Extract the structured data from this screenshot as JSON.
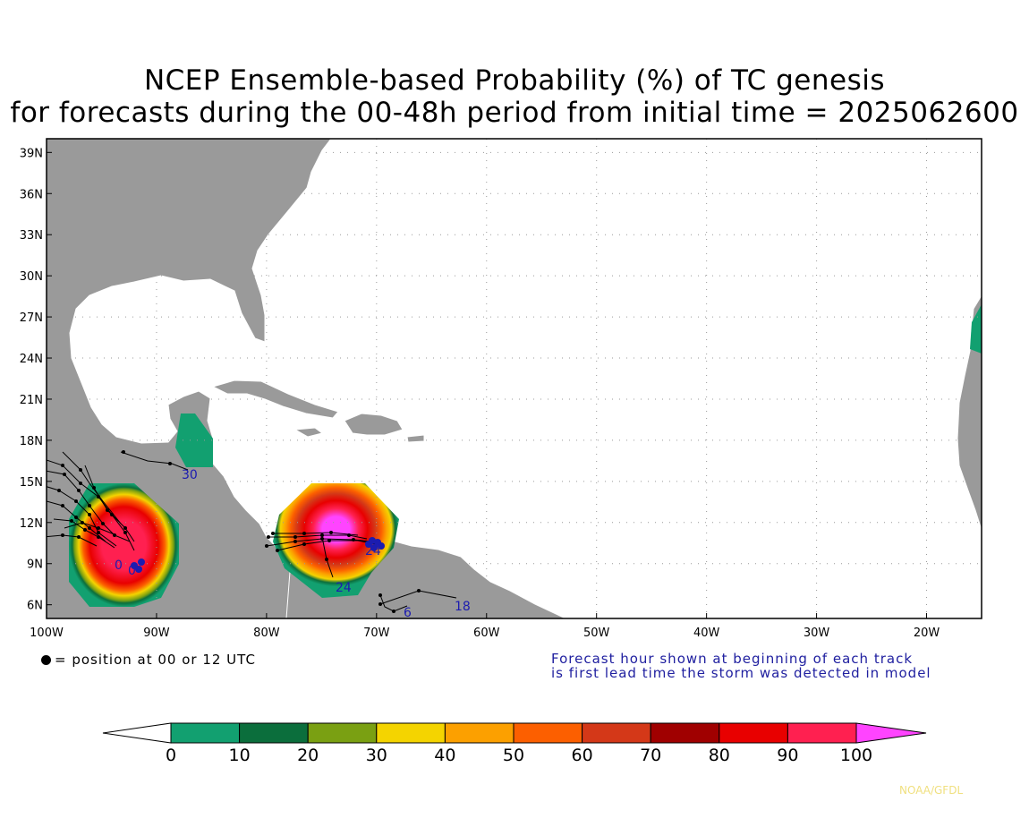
{
  "title": {
    "line1": "NCEP Ensemble-based Probability (%) of TC genesis",
    "line2": "for forecasts during the 00-48h period from initial time = 2025062600"
  },
  "map": {
    "lon_range": [
      -100,
      -15
    ],
    "lat_range": [
      5,
      40
    ],
    "lat_ticks": [
      "39N",
      "36N",
      "33N",
      "30N",
      "27N",
      "24N",
      "21N",
      "18N",
      "15N",
      "12N",
      "9N",
      "6N"
    ],
    "lon_ticks": [
      "100W",
      "90W",
      "80W",
      "70W",
      "60W",
      "50W",
      "40W",
      "30W",
      "20W"
    ],
    "land_color": "#9a9a9a",
    "ocean_color": "#ffffff",
    "probability_areas": [
      {
        "name": "eastern-pacific",
        "center_lon": -93.5,
        "center_lat": 10.5,
        "peak": 90
      },
      {
        "name": "caribbean-colombia-venezuela",
        "center_lon": -73,
        "center_lat": 12,
        "peak": 100
      },
      {
        "name": "yucatan-belize",
        "center_lon": -87,
        "center_lat": 17,
        "peak": 10
      },
      {
        "name": "west-africa-coast",
        "center_lon": -15.5,
        "center_lat": 26,
        "peak": 10
      }
    ],
    "track_labels": [
      {
        "text": "30",
        "lon": -87.1,
        "lat": 15.6
      },
      {
        "text": "24",
        "lon": -73.5,
        "lat": 7.4
      },
      {
        "text": "18",
        "lon": -63.8,
        "lat": 6.4
      },
      {
        "text": "6",
        "lon": -67.4,
        "lat": 5.9
      },
      {
        "text": "0",
        "lon": -92.7,
        "lat": 9.7
      },
      {
        "text": "0",
        "lon": -91.4,
        "lat": 9.2
      },
      {
        "text": "24",
        "lon": -70.6,
        "lat": 10.0
      }
    ]
  },
  "legend": {
    "dot_text": "= position at 00 or 12 UTC",
    "forecast_note_line1": "Forecast hour shown at beginning of each track",
    "forecast_note_line2": "is first lead time the storm was detected in model"
  },
  "colorbar": {
    "labels": [
      "0",
      "10",
      "20",
      "30",
      "40",
      "50",
      "60",
      "70",
      "80",
      "90",
      "100"
    ],
    "colors": [
      "#12a070",
      "#0b6e3c",
      "#7aa012",
      "#f4d400",
      "#fca000",
      "#fc5f00",
      "#d43818",
      "#a00000",
      "#e80000",
      "#ff2050"
    ],
    "under_color": "#ffffff",
    "over_color": "#ff44ff"
  },
  "credit": "NOAA/GFDL"
}
